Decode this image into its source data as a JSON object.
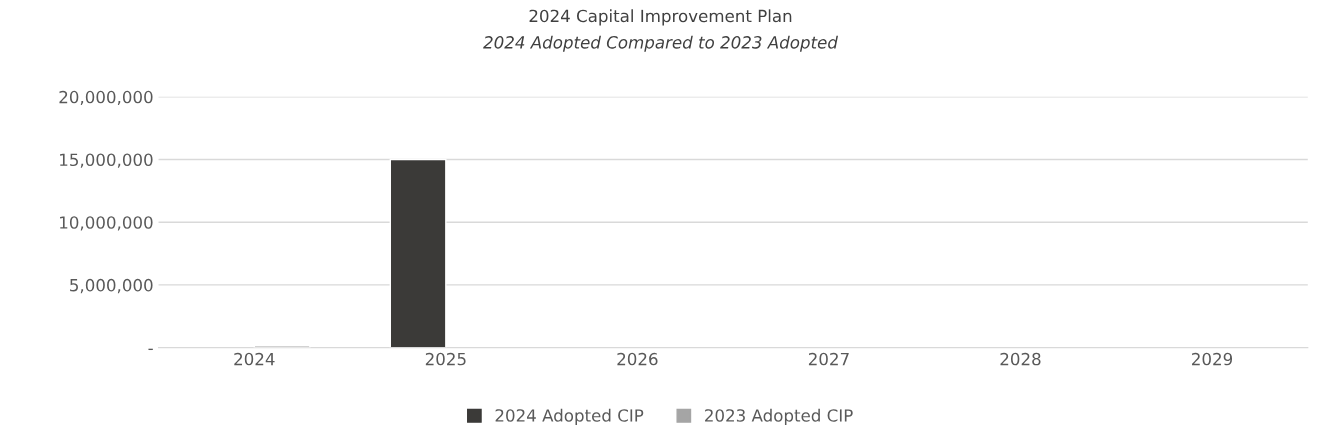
{
  "chart_data": {
    "type": "bar",
    "title": "2024 Capital Improvement Plan",
    "subtitle": "2024 Adopted Compared to 2023 Adopted",
    "categories": [
      "2024",
      "2025",
      "2026",
      "2027",
      "2028",
      "2029"
    ],
    "series": [
      {
        "name": "2024 Adopted CIP",
        "color": "#3b3a38",
        "values": [
          null,
          15000000,
          null,
          null,
          null,
          null
        ]
      },
      {
        "name": "2023 Adopted CIP",
        "color": "#a5a5a5",
        "values": [
          150000,
          null,
          null,
          null,
          null,
          null
        ]
      }
    ],
    "ylim": [
      0,
      20000000
    ],
    "yticks": [
      {
        "value": 0,
        "label": "-"
      },
      {
        "value": 5000000,
        "label": "5,000,000"
      },
      {
        "value": 10000000,
        "label": "10,000,000"
      },
      {
        "value": 15000000,
        "label": "15,000,000"
      },
      {
        "value": 20000000,
        "label": "20,000,000"
      }
    ],
    "grid": "y",
    "legend": "bottom"
  }
}
